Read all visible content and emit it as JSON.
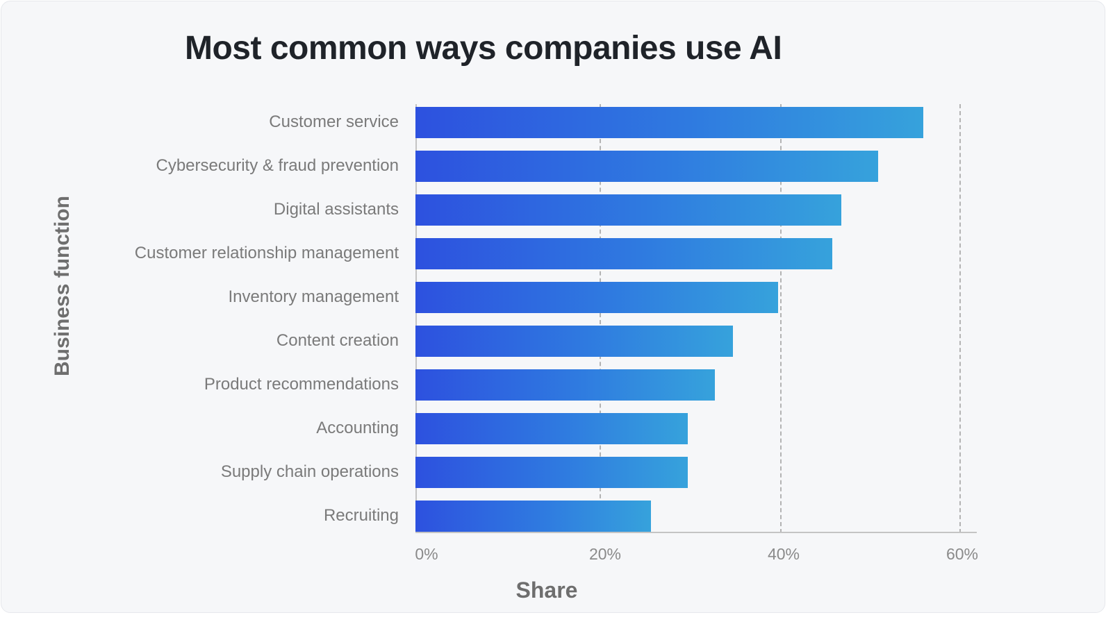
{
  "chart_data": {
    "type": "bar",
    "orientation": "horizontal",
    "title": "Most common ways companies use AI",
    "xlabel": "Share",
    "ylabel": "Business function",
    "categories": [
      "Customer service",
      "Cybersecurity & fraud prevention",
      "Digital assistants",
      "Customer relationship management",
      "Inventory management",
      "Content creation",
      "Product recommendations",
      "Accounting",
      "Supply chain operations",
      "Recruiting"
    ],
    "values": [
      56,
      51,
      47,
      46,
      40,
      35,
      33,
      30,
      30,
      26
    ],
    "xlim": [
      0,
      60
    ],
    "xticks": [
      "0%",
      "20%",
      "40%",
      "60%"
    ],
    "grid": "vertical dashed",
    "colors": {
      "bar_start": "#2d51df",
      "bar_end": "#36a2dc"
    }
  }
}
